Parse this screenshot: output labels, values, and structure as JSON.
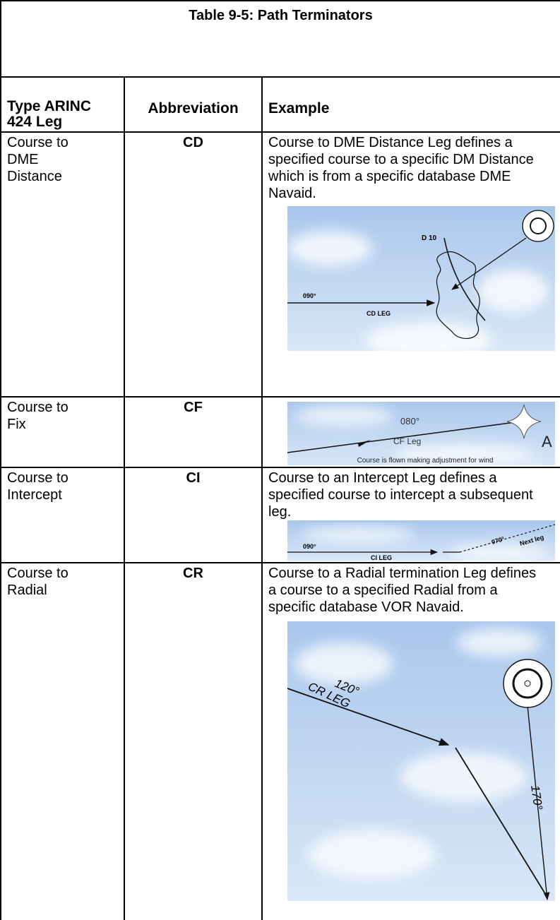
{
  "table": {
    "title": "Table 9-5: Path Terminators",
    "headers": [
      "Type ARINC 424 Leg",
      "Abbreviation",
      "Example"
    ],
    "rows": [
      {
        "type": "Course to DME Distance",
        "abbreviation": "CD",
        "description": "Course to DME Distance Leg defines a specified course to a specific DM Distance which is from a specific database DME Navaid.",
        "figure": {
          "labels": [
            "D 10",
            "090°",
            "CD LEG"
          ]
        }
      },
      {
        "type": "Course to Fix",
        "abbreviation": "CF",
        "figure": {
          "labels": [
            "080°",
            "CF Leg",
            "A",
            "Course is flown making adjustment for wind"
          ]
        }
      },
      {
        "type": "Course to Intercept",
        "abbreviation": "CI",
        "description": "Course to an Intercept Leg defines a specified course to intercept a subsequent leg.",
        "figure": {
          "labels": [
            "090°",
            "CI LEG",
            "070°",
            "Next leg"
          ]
        }
      },
      {
        "type": "Course to Radial",
        "abbreviation": "CR",
        "description": "Course to a Radial termination Leg defines a course to a specified Radial from a specific database VOR Navaid.",
        "figure": {
          "labels": [
            "120°",
            "CR LEG",
            "170°"
          ]
        }
      }
    ]
  }
}
